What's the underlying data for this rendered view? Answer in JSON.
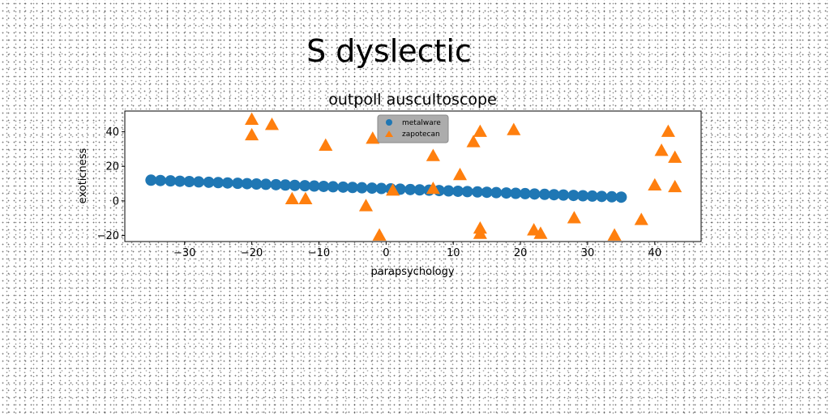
{
  "page": {
    "suptitle": "S dyslectic"
  },
  "chart_data": {
    "type": "scatter",
    "title": "outpoll auscultoscope",
    "xlabel": "parapsychology",
    "ylabel": "exoticness",
    "xlim": [
      -38.9,
      46.9
    ],
    "ylim": [
      -23.5,
      52
    ],
    "xticks": [
      -30,
      -20,
      -10,
      0,
      10,
      20,
      30,
      40
    ],
    "yticks": [
      -20,
      0,
      20,
      40
    ],
    "grid": false,
    "legend_position": "top-center",
    "series": [
      {
        "name": "metalware",
        "marker": "circle",
        "color": "#1f77b4",
        "points": [
          [
            -35,
            12
          ],
          [
            -33.6,
            11.8
          ],
          [
            -32.1,
            11.6
          ],
          [
            -30.7,
            11.4
          ],
          [
            -29.3,
            11.2
          ],
          [
            -27.9,
            11.0
          ],
          [
            -26.4,
            10.8
          ],
          [
            -25.0,
            10.6
          ],
          [
            -23.6,
            10.4
          ],
          [
            -22.1,
            10.2
          ],
          [
            -20.7,
            10.0
          ],
          [
            -19.3,
            9.8
          ],
          [
            -17.9,
            9.6
          ],
          [
            -16.4,
            9.4
          ],
          [
            -15.0,
            9.2
          ],
          [
            -13.6,
            9.0
          ],
          [
            -12.1,
            8.8
          ],
          [
            -10.7,
            8.6
          ],
          [
            -9.3,
            8.4
          ],
          [
            -7.9,
            8.2
          ],
          [
            -6.4,
            8.0
          ],
          [
            -5.0,
            7.8
          ],
          [
            -3.6,
            7.6
          ],
          [
            -2.1,
            7.4
          ],
          [
            -0.7,
            7.2
          ],
          [
            0.7,
            7.0
          ],
          [
            2.1,
            6.8
          ],
          [
            3.6,
            6.6
          ],
          [
            5.0,
            6.4
          ],
          [
            6.4,
            6.2
          ],
          [
            7.9,
            6.0
          ],
          [
            9.3,
            5.8
          ],
          [
            10.7,
            5.6
          ],
          [
            12.1,
            5.4
          ],
          [
            13.6,
            5.2
          ],
          [
            15.0,
            5.0
          ],
          [
            16.4,
            4.8
          ],
          [
            17.9,
            4.6
          ],
          [
            19.3,
            4.4
          ],
          [
            20.7,
            4.2
          ],
          [
            22.1,
            4.0
          ],
          [
            23.6,
            3.8
          ],
          [
            25.0,
            3.6
          ],
          [
            26.4,
            3.4
          ],
          [
            27.9,
            3.2
          ],
          [
            29.3,
            3.0
          ],
          [
            30.7,
            2.8
          ],
          [
            32.1,
            2.6
          ],
          [
            33.6,
            2.4
          ],
          [
            35.0,
            2.2
          ]
        ]
      },
      {
        "name": "zapotecan",
        "marker": "triangle",
        "color": "#ff7f0e",
        "points": [
          [
            -20,
            47
          ],
          [
            -20,
            38
          ],
          [
            -17,
            44
          ],
          [
            -14,
            1
          ],
          [
            -12,
            1
          ],
          [
            -9,
            32
          ],
          [
            -3,
            -3
          ],
          [
            -2,
            36
          ],
          [
            -1,
            -20
          ],
          [
            1,
            6
          ],
          [
            7,
            26
          ],
          [
            7,
            7
          ],
          [
            11,
            15
          ],
          [
            13,
            34
          ],
          [
            14,
            40
          ],
          [
            14,
            -16
          ],
          [
            14,
            -19
          ],
          [
            19,
            41
          ],
          [
            22,
            -17
          ],
          [
            23,
            -19
          ],
          [
            28,
            -10
          ],
          [
            34,
            -20
          ],
          [
            38,
            -11
          ],
          [
            40,
            9
          ],
          [
            41,
            29
          ],
          [
            42,
            40
          ],
          [
            43,
            25
          ],
          [
            43,
            8
          ]
        ]
      }
    ]
  }
}
